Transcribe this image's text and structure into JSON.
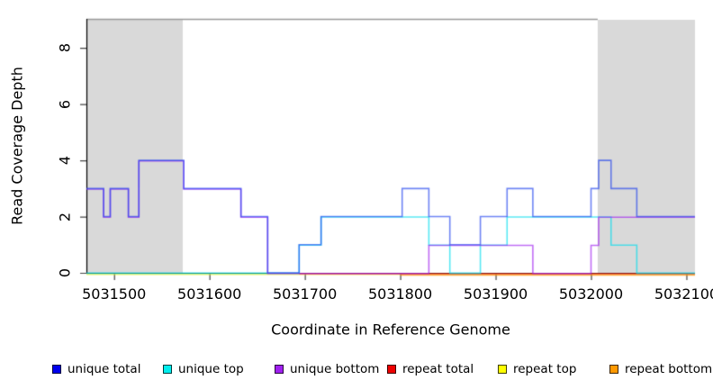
{
  "figure": {
    "background": "#ffffff"
  },
  "axes": {
    "xlabel": "Coordinate in Reference Genome",
    "ylabel": "Read Coverage Depth",
    "x_ticks": [
      {
        "value": 5031500,
        "label": "5031500"
      },
      {
        "value": 5031600,
        "label": "5031600"
      },
      {
        "value": 5031700,
        "label": "5031700"
      },
      {
        "value": 5031800,
        "label": "5031800"
      },
      {
        "value": 5031900,
        "label": "5031900"
      },
      {
        "value": 5032000,
        "label": "5032000"
      },
      {
        "value": 5032100,
        "label": "5032100"
      }
    ],
    "y_ticks": [
      {
        "value": 0,
        "label": "0"
      },
      {
        "value": 2,
        "label": "2"
      },
      {
        "value": 4,
        "label": "4"
      },
      {
        "value": 6,
        "label": "6"
      },
      {
        "value": 8,
        "label": "8"
      }
    ]
  },
  "chart_data": {
    "type": "line",
    "subtype": "step-coverage",
    "title": "",
    "xlabel": "Coordinate in Reference Genome",
    "ylabel": "Read Coverage Depth",
    "xlim": [
      5031471,
      5032109
    ],
    "ylim": [
      0,
      9
    ],
    "grid": false,
    "legend_position": "bottom",
    "shade_color": "#d9d9d9",
    "top_rule_color": "#999999",
    "axis_color": "#000000",
    "tick_color": "#444444",
    "shaded_regions": [
      {
        "from": 5031471,
        "to": 5031572
      },
      {
        "from": 5032007,
        "to": 5032109
      }
    ],
    "draw_order": [
      4,
      5,
      3,
      1,
      2,
      0
    ],
    "series": [
      {
        "name": "unique total",
        "legend_color": "#0000EE",
        "line_color": "#2244EE",
        "y_offset": 0,
        "steps": [
          [
            5031471,
            3
          ],
          [
            5031489,
            2
          ],
          [
            5031496,
            3
          ],
          [
            5031515,
            2
          ],
          [
            5031526,
            4
          ],
          [
            5031573,
            3
          ],
          [
            5031633,
            2
          ],
          [
            5031661,
            0
          ],
          [
            5031694,
            1
          ],
          [
            5031717,
            2
          ],
          [
            5031802,
            3
          ],
          [
            5031830,
            2
          ],
          [
            5031852,
            1
          ],
          [
            5031884,
            2
          ],
          [
            5031912,
            3
          ],
          [
            5031939,
            2
          ],
          [
            5032000,
            3
          ],
          [
            5032008,
            4
          ],
          [
            5032021,
            3
          ],
          [
            5032048,
            2
          ],
          [
            5032109,
            2
          ]
        ]
      },
      {
        "name": "unique top",
        "legend_color": "#00EEEE",
        "line_color": "#00DDEE",
        "y_offset": 0.4,
        "steps": [
          [
            5031471,
            0
          ],
          [
            5031694,
            1
          ],
          [
            5031717,
            2
          ],
          [
            5031830,
            1
          ],
          [
            5031852,
            0
          ],
          [
            5031884,
            1
          ],
          [
            5031912,
            2
          ],
          [
            5032021,
            1
          ],
          [
            5032048,
            0
          ],
          [
            5032109,
            0
          ]
        ]
      },
      {
        "name": "unique bottom",
        "legend_color": "#A020F0",
        "line_color": "#A020F0",
        "y_offset": 0.7,
        "steps": [
          [
            5031471,
            3
          ],
          [
            5031489,
            2
          ],
          [
            5031496,
            3
          ],
          [
            5031515,
            2
          ],
          [
            5031526,
            4
          ],
          [
            5031573,
            3
          ],
          [
            5031633,
            2
          ],
          [
            5031661,
            0
          ],
          [
            5031830,
            1
          ],
          [
            5031939,
            0
          ],
          [
            5032000,
            1
          ],
          [
            5032008,
            2
          ],
          [
            5032109,
            2
          ]
        ]
      },
      {
        "name": "repeat total",
        "legend_color": "#EE0000",
        "line_color": "#EE1133",
        "y_offset": 1.0,
        "steps": [
          [
            5031694,
            0
          ],
          [
            5032109,
            0
          ]
        ]
      },
      {
        "name": "repeat top",
        "legend_color": "#FFFF00",
        "line_color": "#EEEE22",
        "y_offset": 1.6,
        "steps": [
          [
            5031471,
            0
          ],
          [
            5032109,
            0
          ]
        ]
      },
      {
        "name": "repeat bottom",
        "legend_color": "#FF9900",
        "line_color": "#FF8800",
        "y_offset": 2.4,
        "steps": [
          [
            5031800,
            0
          ],
          [
            5032109,
            0
          ]
        ]
      }
    ]
  },
  "legend_x_positions": [
    58,
    181,
    305,
    430,
    553,
    677
  ]
}
